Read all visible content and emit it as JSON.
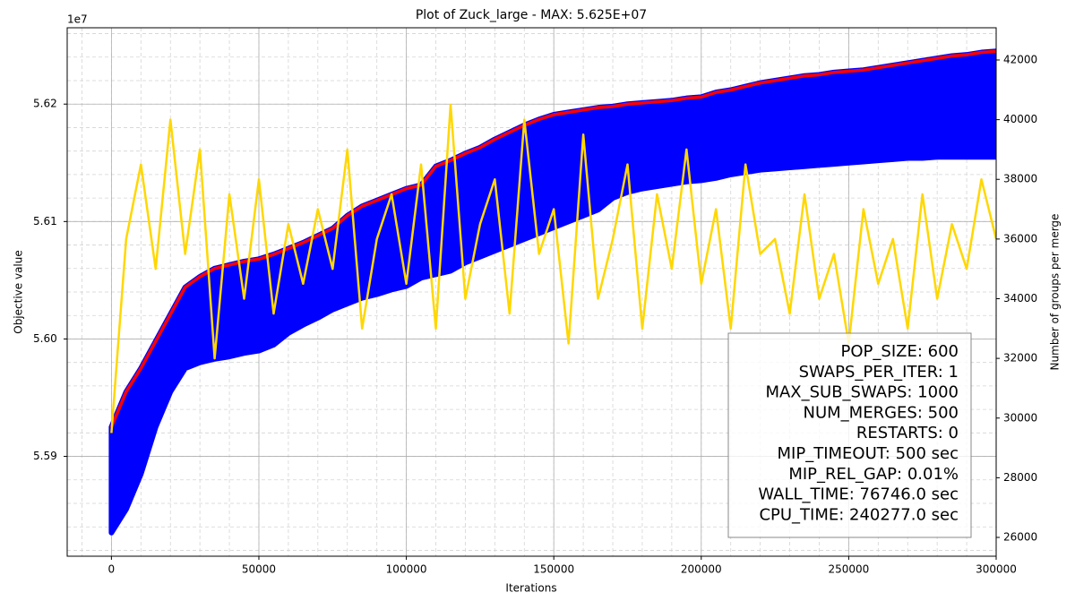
{
  "chart_data": {
    "type": "line",
    "title": "Plot of Zuck_large - MAX: 5.625E+07",
    "xlabel": "Iterations",
    "ylabel": "Objective value",
    "y2label": "Number of groups per merge",
    "offset_text": "1e7",
    "grid": true,
    "minor_grid": true,
    "xlim": [
      -15000,
      300000
    ],
    "xticks": [
      0,
      50000,
      100000,
      150000,
      200000,
      250000,
      300000
    ],
    "ylim": [
      5.5815,
      5.6265
    ],
    "yticks": [
      {
        "value": 5.59,
        "label": "5.59"
      },
      {
        "value": 5.6,
        "label": "5.60"
      },
      {
        "value": 5.61,
        "label": "5.61"
      },
      {
        "value": 5.62,
        "label": "5.62"
      }
    ],
    "y2lim": [
      25370,
      43080
    ],
    "y2ticks": [
      26000,
      28000,
      30000,
      32000,
      34000,
      36000,
      38000,
      40000,
      42000
    ],
    "x": [
      0,
      5000,
      10000,
      15000,
      20000,
      25000,
      30000,
      35000,
      40000,
      45000,
      50000,
      55000,
      60000,
      65000,
      70000,
      75000,
      80000,
      85000,
      90000,
      95000,
      100000,
      105000,
      110000,
      115000,
      120000,
      125000,
      130000,
      135000,
      140000,
      145000,
      150000,
      155000,
      160000,
      165000,
      170000,
      175000,
      180000,
      185000,
      190000,
      195000,
      200000,
      205000,
      210000,
      215000,
      220000,
      225000,
      230000,
      235000,
      240000,
      245000,
      250000,
      255000,
      260000,
      265000,
      270000,
      275000,
      280000,
      285000,
      290000,
      295000,
      300000
    ],
    "series": [
      {
        "color": "#0000ff",
        "type": "area",
        "values": [
          5.5835,
          5.5855,
          5.5885,
          5.5925,
          5.5955,
          5.5975,
          5.598,
          5.5983,
          5.5985,
          5.5988,
          5.599,
          5.5995,
          5.6005,
          5.6012,
          5.6018,
          5.6025,
          5.603,
          5.6035,
          5.6038,
          5.6042,
          5.6045,
          5.6052,
          5.6055,
          5.6058,
          5.6065,
          5.607,
          5.6075,
          5.608,
          5.6085,
          5.609,
          5.6095,
          5.61,
          5.6105,
          5.611,
          5.612,
          5.6125,
          5.6128,
          5.613,
          5.6132,
          5.6134,
          5.6135,
          5.6137,
          5.614,
          5.6142,
          5.6144,
          5.6145,
          5.6146,
          5.6147,
          5.6148,
          5.6149,
          5.615,
          5.6151,
          5.6152,
          5.6153,
          5.6154,
          5.6154,
          5.6155,
          5.6155,
          5.6155,
          5.6155,
          5.6155
        ]
      },
      {
        "color": "#ff0000",
        "type": "line",
        "values": [
          5.5925,
          5.5955,
          5.5975,
          5.5998,
          5.6021,
          5.6044,
          5.6053,
          5.606,
          5.6063,
          5.6066,
          5.6068,
          5.6072,
          5.6077,
          5.6082,
          5.6088,
          5.6094,
          5.6105,
          5.6113,
          5.6118,
          5.6123,
          5.6128,
          5.6131,
          5.6147,
          5.6152,
          5.6158,
          5.6163,
          5.617,
          5.6176,
          5.6182,
          5.6187,
          5.6191,
          5.6193,
          5.6195,
          5.6197,
          5.6198,
          5.62,
          5.6201,
          5.6202,
          5.6203,
          5.6205,
          5.6206,
          5.621,
          5.6212,
          5.6215,
          5.6218,
          5.622,
          5.6222,
          5.6224,
          5.6225,
          5.6227,
          5.6228,
          5.6229,
          5.6231,
          5.6233,
          5.6235,
          5.6237,
          5.6239,
          5.6241,
          5.6242,
          5.6244,
          5.6245
        ]
      },
      {
        "color": "#ffd700",
        "type": "line",
        "axis": "y2",
        "values": [
          29500,
          36000,
          38500,
          35000,
          40000,
          35500,
          39000,
          32000,
          37500,
          34000,
          38000,
          33500,
          36500,
          34500,
          37000,
          35000,
          39000,
          33000,
          36000,
          37500,
          34500,
          38500,
          33000,
          40500,
          34000,
          36500,
          38000,
          33500,
          40000,
          35500,
          37000,
          32500,
          39500,
          34000,
          36000,
          38500,
          33000,
          37500,
          35000,
          39000,
          34500,
          37000,
          33000,
          38500,
          35500,
          36000,
          33500,
          37500,
          34000,
          35500,
          32500,
          37000,
          34500,
          36000,
          33000,
          37500,
          34000,
          36500,
          35000,
          38000,
          36000
        ]
      }
    ],
    "annotations": [
      "POP_SIZE: 600",
      "SWAPS_PER_ITER: 1",
      "MAX_SUB_SWAPS: 1000",
      "NUM_MERGES: 500",
      "RESTARTS: 0",
      "MIP_TIMEOUT: 500 sec",
      "MIP_REL_GAP: 0.01%",
      "WALL_TIME: 76746.0 sec",
      "CPU_TIME: 240277.0 sec"
    ]
  }
}
